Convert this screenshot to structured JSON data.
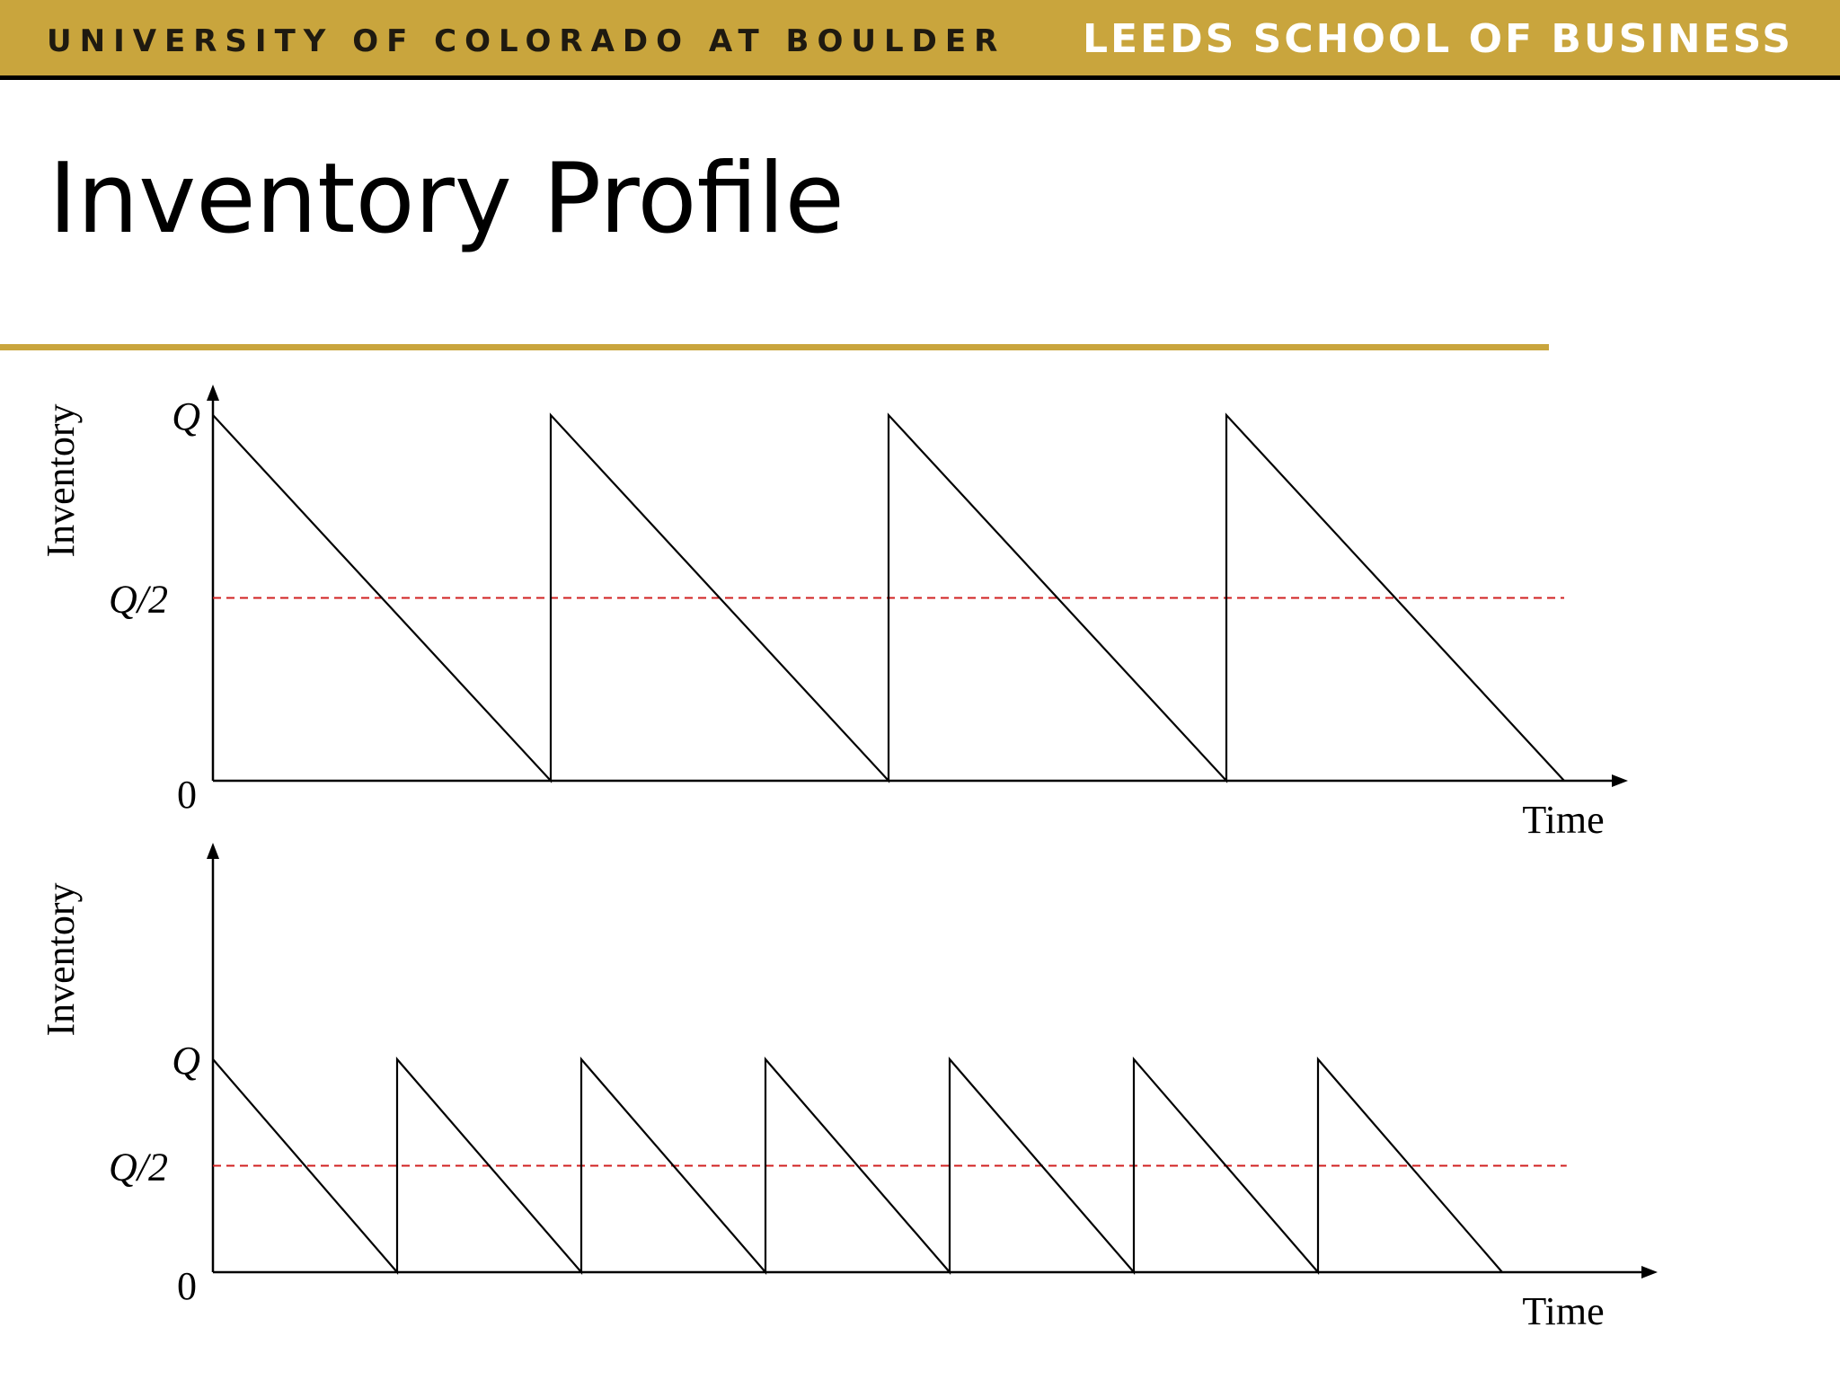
{
  "header": {
    "left_text": "UNIVERSITY OF COLORADO AT BOULDER",
    "right_text": "LEEDS SCHOOL OF BUSINESS"
  },
  "slide": {
    "title": "Inventory Profile"
  },
  "colors": {
    "banner": "#c9a53d",
    "rule": "#c9a53d",
    "line": "#000000",
    "dashed": "#d02020"
  },
  "chart_data": [
    {
      "type": "line",
      "title": "",
      "xlabel": "Time",
      "ylabel": "Inventory",
      "ytick_labels": [
        "0",
        "Q/2",
        "Q"
      ],
      "ylim": [
        0,
        1
      ],
      "xlim": [
        0,
        4.25
      ],
      "grid": false,
      "series": [
        {
          "x": [
            0,
            1,
            1,
            2,
            2,
            3,
            3,
            4
          ],
          "values": [
            1,
            0,
            1,
            0,
            1,
            0,
            1,
            0
          ]
        }
      ],
      "reference_line": {
        "y": 0.5,
        "label": "Q/2",
        "style": "dashed",
        "x_end": 4
      }
    },
    {
      "type": "line",
      "title": "",
      "xlabel": "Time",
      "ylabel": "Inventory",
      "ytick_labels": [
        "0",
        "Q/2",
        "Q"
      ],
      "ylim": [
        0,
        2
      ],
      "xlim": [
        0,
        7.4
      ],
      "grid": false,
      "series": [
        {
          "x": [
            0,
            1,
            1,
            2,
            2,
            3,
            3,
            4,
            4,
            5,
            5,
            6,
            6,
            7
          ],
          "values": [
            1,
            0,
            1,
            0,
            1,
            0,
            1,
            0,
            1,
            0,
            1,
            0,
            1,
            0
          ]
        }
      ],
      "reference_line": {
        "y": 0.5,
        "label": "Q/2",
        "style": "dashed",
        "x_end": 7.35
      }
    }
  ]
}
